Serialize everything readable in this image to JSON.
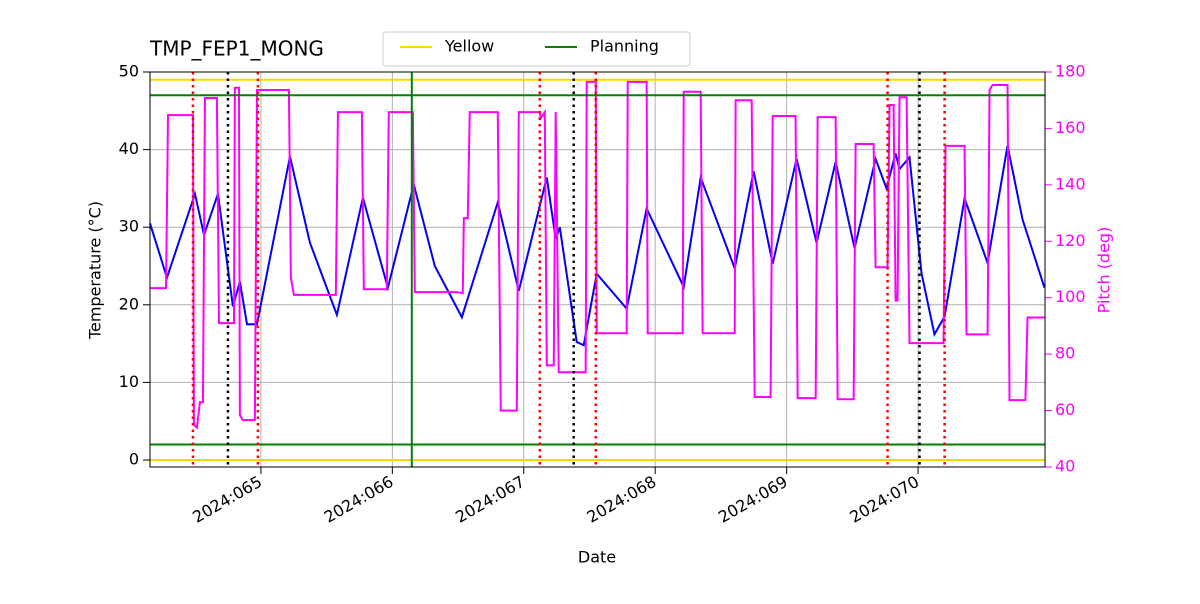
{
  "chart_data": {
    "type": "line",
    "title": "TMP_FEP1_MONG",
    "xlabel": "Date",
    "ylabel": "Temperature (°C)",
    "y2label": "Pitch (deg)",
    "xlim": [
      64.156,
      70.966
    ],
    "xticks": [
      {
        "value": 65,
        "label": "2024:065"
      },
      {
        "value": 66,
        "label": "2024:066"
      },
      {
        "value": 67,
        "label": "2024:067"
      },
      {
        "value": 68,
        "label": "2024:068"
      },
      {
        "value": 69,
        "label": "2024:069"
      },
      {
        "value": 70,
        "label": "2024:070"
      }
    ],
    "ylim": [
      -0.9,
      50
    ],
    "yticks": [
      0,
      10,
      20,
      30,
      40,
      50
    ],
    "y2lim": [
      40,
      180
    ],
    "y2ticks": [
      40,
      60,
      80,
      100,
      120,
      140,
      160,
      180
    ],
    "grid": true,
    "legend": "upper center",
    "series": [
      {
        "color": "#0000ff",
        "x": [
          64.156,
          64.285,
          64.498,
          64.567,
          64.673,
          64.787,
          64.84,
          64.894,
          64.97,
          65.221,
          65.373,
          65.578,
          65.776,
          65.966,
          66.163,
          66.323,
          66.529,
          66.802,
          66.962,
          67.175,
          67.243,
          67.274,
          67.403,
          67.456,
          67.555,
          67.783,
          67.935,
          68.217,
          68.346,
          68.605,
          68.749,
          68.894,
          69.076,
          69.228,
          69.373,
          69.517,
          69.677,
          69.76,
          69.829,
          69.859,
          69.935,
          70.027,
          70.125,
          70.202,
          70.354,
          70.529,
          70.681,
          70.795,
          70.962
        ],
        "values": [
          30.5,
          23.5,
          34.3,
          29,
          34.3,
          19.8,
          23,
          17.5,
          17.5,
          39.1,
          28,
          18.7,
          33.8,
          22.2,
          35.5,
          25,
          18.4,
          33.2,
          21.8,
          36.4,
          28.5,
          30,
          15.2,
          14.8,
          24,
          19.5,
          32.4,
          22.3,
          36.4,
          24.7,
          37.2,
          25.3,
          38.8,
          28,
          38.4,
          27.3,
          38.8,
          35,
          39.5,
          37.5,
          39,
          24,
          16.2,
          18.5,
          33.7,
          25.4,
          40.5,
          31,
          22.2
        ]
      },
      {
        "color": "#ff00ff",
        "axis": "y2",
        "x": [
          64.156,
          64.278,
          64.293,
          64.483,
          64.49,
          64.513,
          64.536,
          64.559,
          64.574,
          64.665,
          64.681,
          64.795,
          64.802,
          64.833,
          64.84,
          64.863,
          64.954,
          64.97,
          65.213,
          65.228,
          65.251,
          65.57,
          65.586,
          65.768,
          65.783,
          65.958,
          65.973,
          66.156,
          66.171,
          66.49,
          66.536,
          66.544,
          66.574,
          66.589,
          66.802,
          66.825,
          66.947,
          66.962,
          67.122,
          67.129,
          67.16,
          67.175,
          67.228,
          67.243,
          67.266,
          67.471,
          67.479,
          67.548,
          67.555,
          67.783,
          67.791,
          67.935,
          67.943,
          68.209,
          68.217,
          68.346,
          68.361,
          68.605,
          68.612,
          68.734,
          68.757,
          68.878,
          68.894,
          69.068,
          69.084,
          69.221,
          69.236,
          69.373,
          69.388,
          69.51,
          69.525,
          69.662,
          69.677,
          69.768,
          69.783,
          69.814,
          69.829,
          69.844,
          69.859,
          69.913,
          69.935,
          70.194,
          70.209,
          70.354,
          70.369,
          70.529,
          70.544,
          70.567,
          70.681,
          70.696,
          70.817,
          70.833,
          70.962
        ],
        "values": [
          103.4,
          103.4,
          164.7,
          164.7,
          55,
          54,
          63,
          63,
          170.8,
          170.8,
          91,
          91,
          174.4,
          174.4,
          58.4,
          56.6,
          56.6,
          173.6,
          173.6,
          107,
          101,
          101,
          165.8,
          165.8,
          103,
          103,
          165.8,
          165.8,
          102,
          102,
          101.6,
          128.2,
          128.2,
          165.8,
          165.8,
          60,
          60,
          165.8,
          165.8,
          163.7,
          165.8,
          76,
          76,
          165.8,
          73.6,
          73.6,
          176.5,
          176.5,
          87.4,
          87.4,
          176.5,
          176.5,
          87.4,
          87.4,
          173,
          173,
          87.4,
          87.4,
          170,
          170,
          64.8,
          64.8,
          164.4,
          164.4,
          64.4,
          64.4,
          164,
          164,
          64,
          64,
          154.5,
          154.5,
          110.8,
          110.8,
          168.3,
          168.3,
          99,
          99,
          171,
          171,
          83.9,
          83.9,
          153.8,
          153.8,
          87,
          87,
          173.6,
          175.4,
          175.4,
          63.7,
          63.7,
          93,
          93
        ]
      }
    ],
    "hlines": [
      {
        "name": "Yellow",
        "color": "#ffd700",
        "values": [
          0,
          49
        ]
      },
      {
        "name": "Planning",
        "color": "#008000",
        "values": [
          2,
          47
        ]
      }
    ],
    "vlines": [
      {
        "color": "#ff0000",
        "style": "dotted",
        "x": [
          64.483,
          64.977,
          67.122,
          67.548,
          69.768,
          70.202
        ]
      },
      {
        "color": "#000000",
        "style": "dotted",
        "x": [
          64.749,
          67.38,
          70.011
        ]
      },
      {
        "color": "#008000",
        "style": "solid",
        "x": [
          66.148
        ]
      }
    ]
  }
}
